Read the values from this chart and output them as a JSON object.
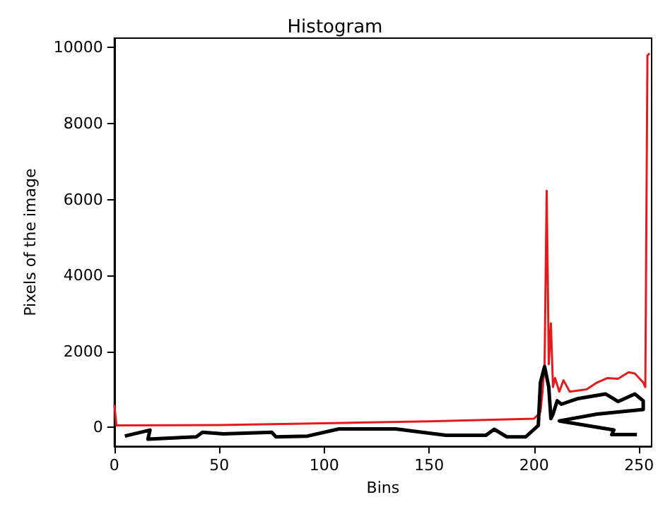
{
  "chart_data": {
    "type": "line",
    "title": "Histogram",
    "xlabel": "Bins",
    "ylabel": "Pixels of the image",
    "xlim": [
      0,
      256
    ],
    "ylim": [
      -500,
      10250
    ],
    "xticks": [
      0,
      50,
      100,
      150,
      200,
      250
    ],
    "yticks": [
      0,
      2000,
      4000,
      6000,
      8000,
      10000
    ],
    "grid": false,
    "marker": "none",
    "line_style": "solid",
    "series": [
      {
        "color": "#e41a1c",
        "x": [
          0,
          1,
          50,
          100,
          150,
          200,
          203,
          204,
          205,
          206,
          207,
          208,
          209,
          210,
          212,
          214,
          217,
          225,
          230,
          235,
          240,
          245,
          248,
          252,
          253,
          254,
          255
        ],
        "values": [
          600,
          50,
          60,
          110,
          160,
          230,
          400,
          940,
          1660,
          6230,
          1660,
          2740,
          1060,
          1300,
          940,
          1240,
          940,
          1000,
          1180,
          1300,
          1280,
          1450,
          1420,
          1180,
          1060,
          9790,
          9850
        ]
      },
      {
        "color": "#000000",
        "x": [
          5,
          17,
          16,
          39,
          42,
          52,
          75,
          77,
          92,
          107,
          134,
          158,
          177,
          181,
          187,
          196,
          202,
          203,
          205,
          207,
          208,
          209,
          211,
          213,
          221,
          234,
          240,
          248,
          252,
          252,
          230,
          212,
          238,
          237,
          249
        ],
        "values": [
          -230,
          -70,
          -310,
          -250,
          -130,
          -170,
          -130,
          -250,
          -230,
          -40,
          -40,
          -210,
          -210,
          -50,
          -250,
          -250,
          50,
          1180,
          1600,
          1060,
          230,
          350,
          700,
          610,
          760,
          880,
          680,
          880,
          700,
          470,
          350,
          170,
          -70,
          -190,
          -190
        ]
      }
    ]
  }
}
